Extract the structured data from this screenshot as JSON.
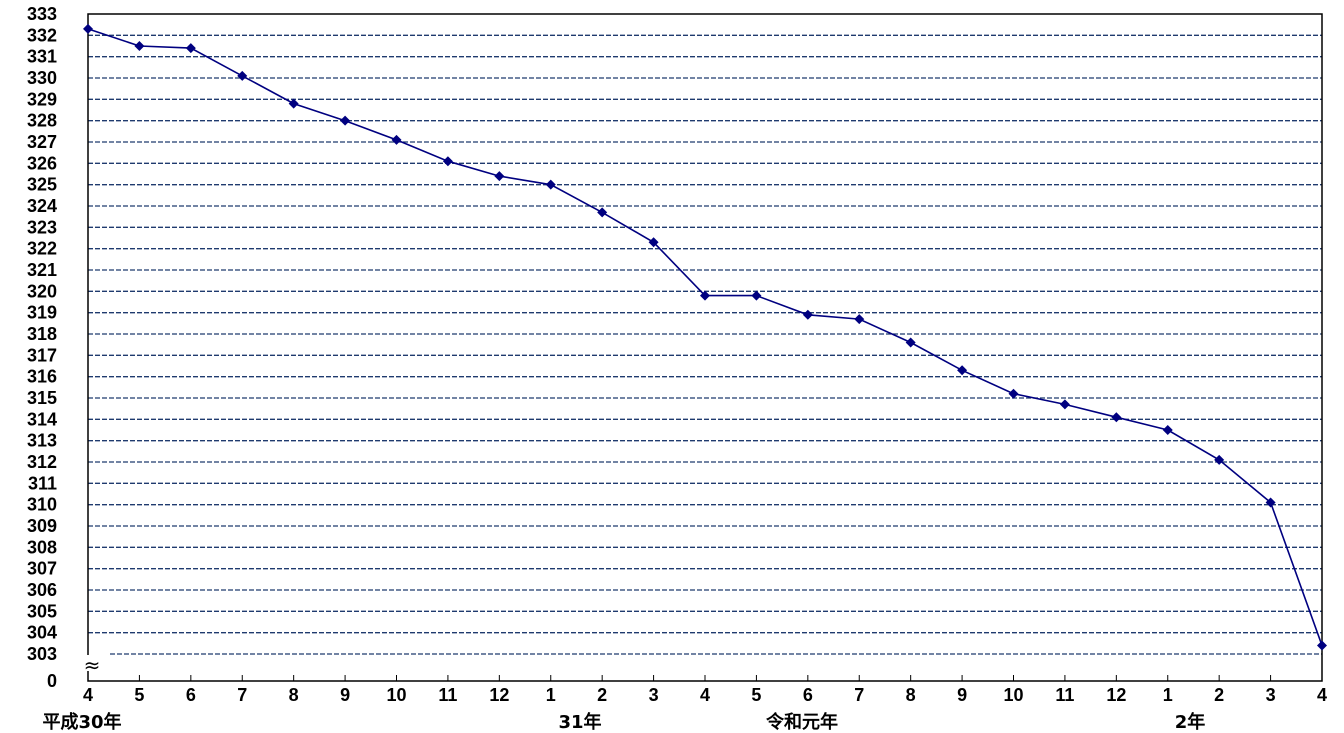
{
  "chart_data": {
    "type": "line",
    "title": "",
    "xlabel": "",
    "ylabel": "",
    "x": [
      "4",
      "5",
      "6",
      "7",
      "8",
      "9",
      "10",
      "11",
      "12",
      "1",
      "2",
      "3",
      "4",
      "5",
      "6",
      "7",
      "8",
      "9",
      "10",
      "11",
      "12",
      "1",
      "2",
      "3",
      "4"
    ],
    "era_labels": [
      "平成30年",
      "31年",
      "令和元年",
      "2年"
    ],
    "series": [
      {
        "values": [
          332.3,
          331.5,
          331.4,
          330.1,
          328.8,
          328.0,
          327.1,
          326.1,
          325.4,
          325.0,
          323.7,
          322.3,
          319.8,
          319.8,
          318.9,
          318.7,
          317.6,
          316.3,
          315.2,
          314.7,
          314.1,
          313.5,
          312.1,
          310.1,
          303.4
        ],
        "color": "#000080"
      }
    ],
    "y_ticks": [
      333,
      332,
      331,
      330,
      329,
      328,
      327,
      326,
      325,
      324,
      323,
      322,
      321,
      320,
      319,
      318,
      317,
      316,
      315,
      314,
      313,
      312,
      311,
      310,
      309,
      308,
      307,
      306,
      305,
      304,
      303
    ],
    "y_zero_label": "0",
    "axis_break": "≈",
    "ylim": [
      303,
      333
    ],
    "grid": "horizontal-dashed",
    "gridline_color": "#1f3a6e",
    "line_color": "#000080"
  }
}
